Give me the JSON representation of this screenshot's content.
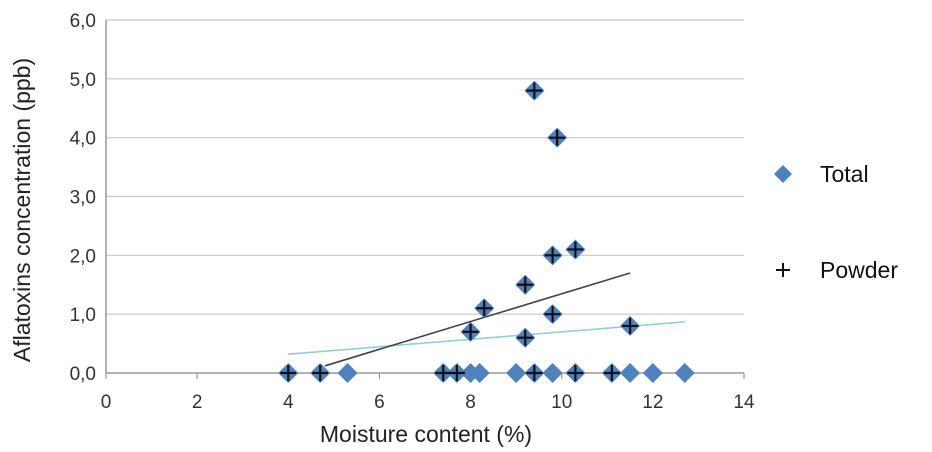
{
  "chart_data": {
    "type": "scatter",
    "xlabel": "Moisture content (%)",
    "ylabel": "Aflatoxins concentration (ppb)",
    "xlim": [
      0,
      14
    ],
    "ylim": [
      0,
      6
    ],
    "x_ticks": [
      "0",
      "2",
      "4",
      "6",
      "8",
      "10",
      "12",
      "14"
    ],
    "y_ticks": [
      "0,0",
      "1,0",
      "2,0",
      "3,0",
      "4,0",
      "5,0",
      "6,0"
    ],
    "grid": "horizontal",
    "legend_position": "right",
    "series": [
      {
        "name": "Total",
        "marker": "diamond",
        "color": "#4f81bd",
        "points": [
          {
            "x": 4.0,
            "y": 0.0
          },
          {
            "x": 4.7,
            "y": 0.0
          },
          {
            "x": 5.3,
            "y": 0.0
          },
          {
            "x": 7.4,
            "y": 0.0
          },
          {
            "x": 7.7,
            "y": 0.0
          },
          {
            "x": 8.0,
            "y": 0.0
          },
          {
            "x": 8.2,
            "y": 0.0
          },
          {
            "x": 9.0,
            "y": 0.0
          },
          {
            "x": 9.4,
            "y": 0.0
          },
          {
            "x": 9.8,
            "y": 0.0
          },
          {
            "x": 10.3,
            "y": 0.0
          },
          {
            "x": 11.1,
            "y": 0.0
          },
          {
            "x": 11.5,
            "y": 0.0
          },
          {
            "x": 12.0,
            "y": 0.0
          },
          {
            "x": 12.7,
            "y": 0.0
          },
          {
            "x": 8.0,
            "y": 0.7
          },
          {
            "x": 8.3,
            "y": 1.1
          },
          {
            "x": 9.2,
            "y": 0.6
          },
          {
            "x": 9.2,
            "y": 1.5
          },
          {
            "x": 9.8,
            "y": 1.0
          },
          {
            "x": 9.8,
            "y": 2.0
          },
          {
            "x": 10.3,
            "y": 2.1
          },
          {
            "x": 11.5,
            "y": 0.8
          },
          {
            "x": 9.4,
            "y": 4.8
          },
          {
            "x": 9.9,
            "y": 4.0
          }
        ],
        "trendline": {
          "x": [
            4.0,
            12.7
          ],
          "y": [
            0.32,
            0.87
          ],
          "color": "#92cddc"
        }
      },
      {
        "name": "Powder",
        "marker": "plus",
        "color": "#111111",
        "points": [
          {
            "x": 4.0,
            "y": 0.0
          },
          {
            "x": 4.7,
            "y": 0.0
          },
          {
            "x": 7.4,
            "y": 0.0
          },
          {
            "x": 7.7,
            "y": 0.0
          },
          {
            "x": 9.4,
            "y": 0.0
          },
          {
            "x": 10.3,
            "y": 0.0
          },
          {
            "x": 11.1,
            "y": 0.0
          },
          {
            "x": 8.0,
            "y": 0.7
          },
          {
            "x": 8.3,
            "y": 1.1
          },
          {
            "x": 9.2,
            "y": 0.6
          },
          {
            "x": 9.2,
            "y": 1.5
          },
          {
            "x": 9.8,
            "y": 1.0
          },
          {
            "x": 9.8,
            "y": 2.0
          },
          {
            "x": 10.3,
            "y": 2.1
          },
          {
            "x": 11.5,
            "y": 0.8
          },
          {
            "x": 9.4,
            "y": 4.8
          },
          {
            "x": 9.9,
            "y": 4.0
          }
        ],
        "trendline": {
          "x": [
            4.8,
            11.5
          ],
          "y": [
            0.12,
            1.7
          ],
          "color": "#444444"
        }
      }
    ]
  }
}
